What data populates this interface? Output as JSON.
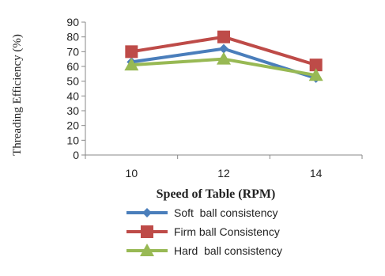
{
  "chart_data": {
    "type": "line",
    "categories": [
      "10",
      "12",
      "14"
    ],
    "series": [
      {
        "name": "Soft  ball consistency",
        "values": [
          63,
          72,
          52
        ],
        "color": "#4a7ebb",
        "marker": "diamond"
      },
      {
        "name": "Firm ball Consistency",
        "values": [
          70,
          80,
          61
        ],
        "color": "#be4b48",
        "marker": "square"
      },
      {
        "name": "Hard  ball consistency",
        "values": [
          61,
          65,
          54
        ],
        "color": "#98b954",
        "marker": "triangle"
      }
    ],
    "xlabel": "Speed of Table (RPM)",
    "ylabel": "Threading Efficiency  (%)",
    "ylim": [
      0,
      90
    ],
    "yticks": [
      0,
      10,
      20,
      30,
      40,
      50,
      60,
      70,
      80,
      90
    ],
    "grid": false,
    "legend": "bottom"
  }
}
